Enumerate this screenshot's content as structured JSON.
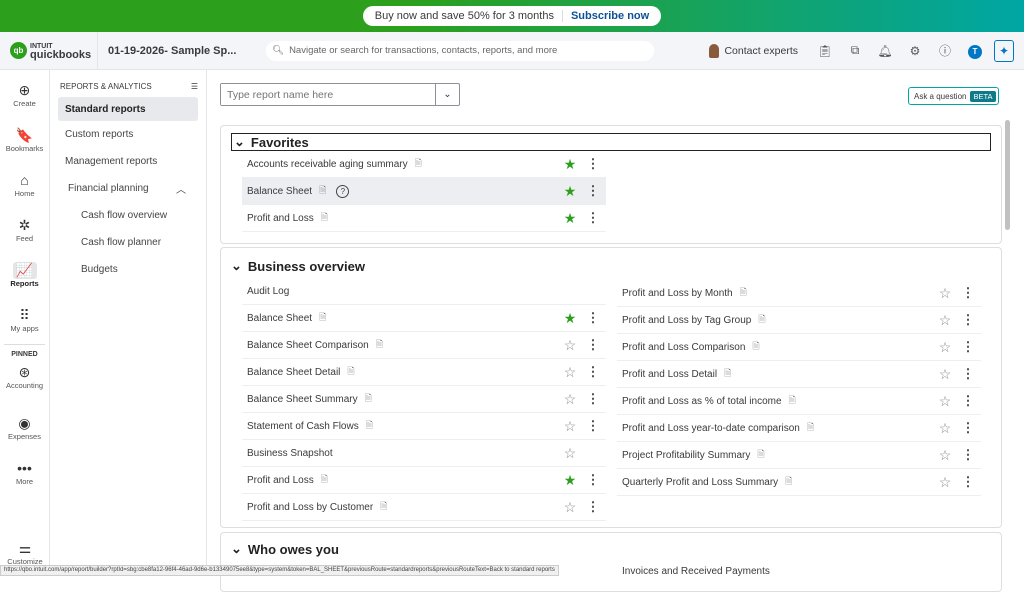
{
  "banner": {
    "text": "Buy now and save 50% for 3 months",
    "cta": "Subscribe now"
  },
  "header": {
    "logo_small": "INTUIT",
    "logo": "quickbooks",
    "company": "01-19-2026- Sample Sp...",
    "search_placeholder": "Navigate or search for transactions, contacts, reports, and more",
    "contact": "Contact experts",
    "avatar_initial": "T"
  },
  "rail": {
    "items": [
      {
        "label": "Create",
        "icon": "⊕"
      },
      {
        "label": "Bookmarks",
        "icon": "🔖"
      },
      {
        "label": "Home",
        "icon": "⌂"
      },
      {
        "label": "Feed",
        "icon": "✲"
      },
      {
        "label": "Reports",
        "icon": "📈"
      },
      {
        "label": "My apps",
        "icon": "⠿"
      }
    ],
    "pinned": "PINNED",
    "pinned_items": [
      {
        "label": "Accounting",
        "icon": "⊛"
      },
      {
        "label": "Expenses",
        "icon": "◉"
      },
      {
        "label": "More",
        "icon": "•••"
      }
    ],
    "customize": "Customize"
  },
  "sidebar": {
    "title": "REPORTS & ANALYTICS",
    "items": [
      "Standard reports",
      "Custom reports",
      "Management reports"
    ],
    "group": "Financial planning",
    "sub": [
      "Cash flow overview",
      "Cash flow planner",
      "Budgets"
    ]
  },
  "main": {
    "search_placeholder": "Type report name here",
    "ask": "Ask a question",
    "beta": "BETA"
  },
  "favorites": {
    "title": "Favorites",
    "items": [
      {
        "name": "Accounts receivable aging summary",
        "star": true
      },
      {
        "name": "Balance Sheet",
        "star": true
      },
      {
        "name": "Profit and Loss",
        "star": true
      }
    ]
  },
  "business": {
    "title": "Business overview",
    "left": [
      {
        "name": "Audit Log",
        "doc": false,
        "star": null
      },
      {
        "name": "Balance Sheet",
        "star": true
      },
      {
        "name": "Balance Sheet Comparison",
        "star": false
      },
      {
        "name": "Balance Sheet Detail",
        "star": false
      },
      {
        "name": "Balance Sheet Summary",
        "star": false
      },
      {
        "name": "Statement of Cash Flows",
        "star": false
      },
      {
        "name": "Business Snapshot",
        "doc": false,
        "star": false,
        "nomenu": true
      },
      {
        "name": "Profit and Loss",
        "star": true
      },
      {
        "name": "Profit and Loss by Customer",
        "star": false
      }
    ],
    "right": [
      {
        "name": "Profit and Loss by Month",
        "star": false
      },
      {
        "name": "Profit and Loss by Tag Group",
        "star": false
      },
      {
        "name": "Profit and Loss Comparison",
        "star": false
      },
      {
        "name": "Profit and Loss Detail",
        "star": false
      },
      {
        "name": "Profit and Loss as % of total income",
        "star": false
      },
      {
        "name": "Profit and Loss year-to-date comparison",
        "star": false
      },
      {
        "name": "Project Profitability Summary",
        "star": false
      },
      {
        "name": "Quarterly Profit and Loss Summary",
        "star": false
      }
    ]
  },
  "who": {
    "title": "Who owes you",
    "right_first": "Invoices and Received Payments"
  },
  "status_url": "https://qbo.intuit.com/app/report/builder?rptId=sbg:cbe8fa12-96f4-46ad-9d6e-b13349075ee8&type=system&token=BAL_SHEET&previousRoute=standardreports&previousRouteText=Back to standard reports"
}
